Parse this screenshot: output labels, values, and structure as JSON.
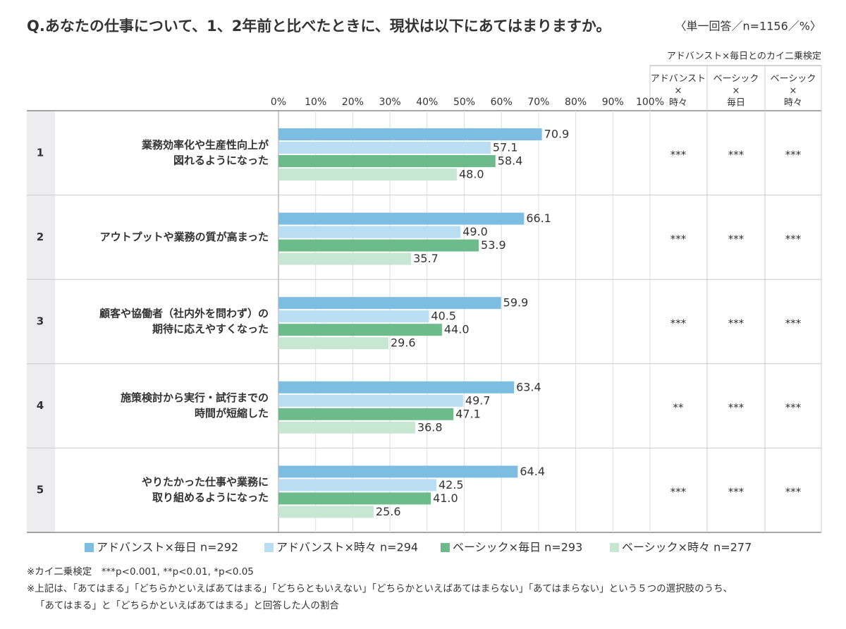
{
  "chart_data": {
    "type": "bar",
    "orientation": "horizontal",
    "title": "Q.あなたの仕事について、1、2年前と比べたときに、現状は以下にあてはまりますか。",
    "subtitle": "〈単一回答／n=1156／%〉",
    "test_title": "アドバンスト×毎日とのカイ二乗検定",
    "test_columns": [
      [
        "アドバンスト",
        "×",
        "時々"
      ],
      [
        "ベーシック",
        "×",
        "毎日"
      ],
      [
        "ベーシック",
        "×",
        "時々"
      ]
    ],
    "row_numbers": [
      "1",
      "2",
      "3",
      "4",
      "5"
    ],
    "categories": [
      [
        "業務効率化や生産性向上が",
        "図れるようになった"
      ],
      [
        "アウトプットや業務の質が高まった"
      ],
      [
        "顧客や協働者（社内外を問わず）の",
        "期待に応えやすくなった"
      ],
      [
        "施策検討から実行・試行までの",
        "時間が短縮した"
      ],
      [
        "やりたかった仕事や業務に",
        "取り組めるようになった"
      ]
    ],
    "series": [
      {
        "name": "アドバンスト×毎日 n=292",
        "color": "#7dbde2",
        "values": [
          70.9,
          66.1,
          59.9,
          63.4,
          64.4
        ],
        "value_labels": [
          "70.9",
          "66.1",
          "59.9",
          "63.4",
          "64.4"
        ]
      },
      {
        "name": "アドバンスト×時々 n=294",
        "color": "#b9ddf3",
        "values": [
          57.1,
          49.0,
          40.5,
          49.7,
          42.5
        ],
        "value_labels": [
          "57.1",
          "49.0",
          "40.5",
          "49.7",
          "42.5"
        ]
      },
      {
        "name": "ベーシック×毎日 n=293",
        "color": "#6dbb8b",
        "values": [
          58.4,
          53.9,
          44.0,
          47.1,
          41.0
        ],
        "value_labels": [
          "58.4",
          "53.9",
          "44.0",
          "47.1",
          "41.0"
        ]
      },
      {
        "name": "ベーシック×時々 n=277",
        "color": "#c8e7d2",
        "values": [
          48.0,
          35.7,
          29.6,
          36.8,
          25.6
        ],
        "value_labels": [
          "48.0",
          "35.7",
          "29.6",
          "36.8",
          "25.6"
        ]
      }
    ],
    "significance": [
      [
        "***",
        "***",
        "***"
      ],
      [
        "***",
        "***",
        "***"
      ],
      [
        "***",
        "***",
        "***"
      ],
      [
        "**",
        "***",
        "***"
      ],
      [
        "***",
        "***",
        "***"
      ]
    ],
    "xlim": [
      0,
      100
    ],
    "xticks": [
      {
        "value": 0,
        "label": "0%"
      },
      {
        "value": 10,
        "label": "10%"
      },
      {
        "value": 20,
        "label": "20%"
      },
      {
        "value": 30,
        "label": "30%"
      },
      {
        "value": 40,
        "label": "40%"
      },
      {
        "value": 50,
        "label": "50%"
      },
      {
        "value": 60,
        "label": "60%"
      },
      {
        "value": 70,
        "label": "70%"
      },
      {
        "value": 80,
        "label": "80%"
      },
      {
        "value": 90,
        "label": "90%"
      },
      {
        "value": 100,
        "label": "100%"
      }
    ],
    "grid": true,
    "notes": [
      "※カイ二乗検定　***p<0.001, **p<0.01, *p<0.05",
      "※上記は、「あてはまる」「どちらかといえばあてはまる」「どちらともいえない」「どちらかといえばあてはまらない」「あてはまらない」という５つの選択肢のうち、",
      "「あてはまる」と「どちらかといえばあてはまる」と回答した人の割合"
    ]
  }
}
